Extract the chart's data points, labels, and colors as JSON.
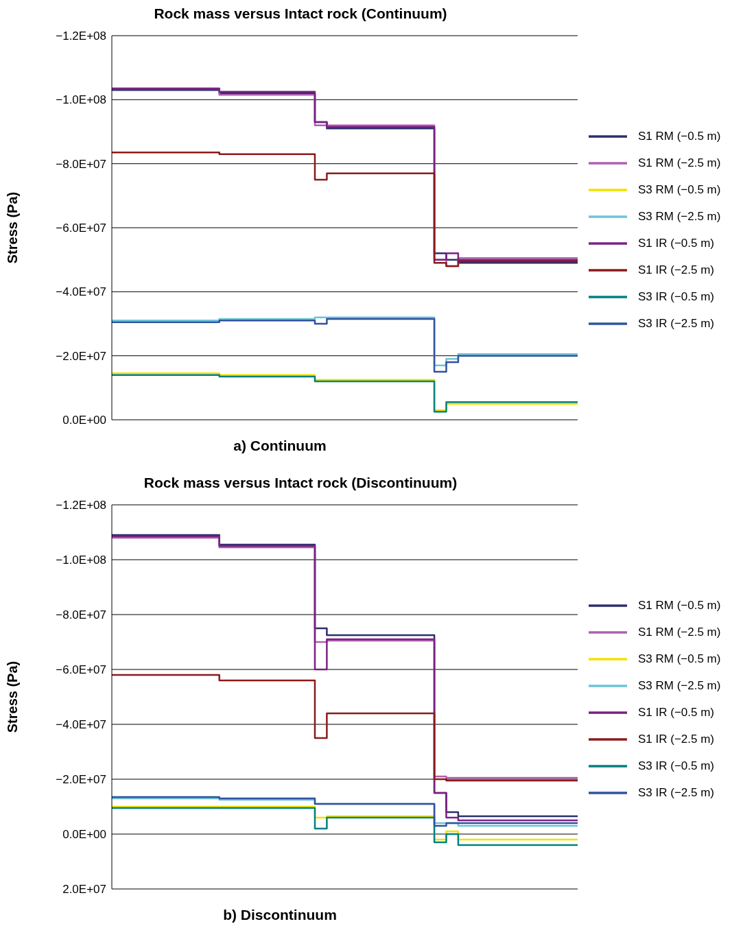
{
  "chart_data": [
    {
      "type": "step",
      "title": "Rock mass versus Intact rock (Continuum)",
      "xlabel": "a) Continuum",
      "ylabel": "Stress (Pa)",
      "categories": [
        null,
        null,
        null,
        null,
        null,
        null,
        null,
        null,
        null,
        null,
        null,
        null,
        null,
        null,
        null,
        null,
        null,
        null,
        null,
        null,
        null,
        null,
        null,
        null,
        null,
        null,
        null,
        null,
        null,
        null,
        null,
        null,
        null,
        null,
        null,
        null,
        null,
        null,
        null,
        null
      ],
      "ylim": [
        0,
        -120000000.0
      ],
      "yticks": [
        {
          "value": 0,
          "label": "0.0E+00"
        },
        {
          "value": -20000000.0,
          "label": "−2.0E+07"
        },
        {
          "value": -40000000.0,
          "label": "−4.0E+07"
        },
        {
          "value": -60000000.0,
          "label": "−6.0E+07"
        },
        {
          "value": -80000000.0,
          "label": "−8.0E+07"
        },
        {
          "value": -100000000.0,
          "label": "−1.0E+08"
        },
        {
          "value": -120000000.0,
          "label": "−1.2E+08"
        }
      ],
      "grid": "y",
      "legend": "right",
      "tick_labels": "y",
      "marker": "none",
      "series": [
        {
          "name": "S1 RM (−0.5 m)",
          "color": "#2b2f6b",
          "values": [
            -103000000.0,
            -103000000.0,
            -103000000.0,
            -103000000.0,
            -103000000.0,
            -103000000.0,
            -103000000.0,
            -103000000.0,
            -103000000.0,
            -102000000.0,
            -102000000.0,
            -102000000.0,
            -102000000.0,
            -102000000.0,
            -102000000.0,
            -102000000.0,
            -102000000.0,
            -93000000.0,
            -91000000.0,
            -91000000.0,
            -91000000.0,
            -91000000.0,
            -91000000.0,
            -91000000.0,
            -91000000.0,
            -91000000.0,
            -91000000.0,
            -52000000.0,
            -50000000.0,
            -49000000.0,
            -49000000.0,
            -49000000.0,
            -49000000.0,
            -49000000.0,
            -49000000.0,
            -49000000.0,
            -49000000.0,
            -49000000.0,
            -49000000.0,
            -49000000.0
          ]
        },
        {
          "name": "S1 RM (−2.5 m)",
          "color": "#b060b0",
          "values": [
            -103500000.0,
            -103500000.0,
            -103500000.0,
            -103500000.0,
            -103500000.0,
            -103500000.0,
            -103500000.0,
            -103500000.0,
            -103500000.0,
            -101500000.0,
            -101500000.0,
            -101500000.0,
            -101500000.0,
            -101500000.0,
            -101500000.0,
            -101500000.0,
            -101500000.0,
            -92000000.0,
            -92000000.0,
            -92000000.0,
            -92000000.0,
            -92000000.0,
            -92000000.0,
            -92000000.0,
            -92000000.0,
            -92000000.0,
            -92000000.0,
            -50000000.0,
            -48000000.0,
            -50500000.0,
            -50500000.0,
            -50500000.0,
            -50500000.0,
            -50500000.0,
            -50500000.0,
            -50500000.0,
            -50500000.0,
            -50500000.0,
            -50500000.0,
            -50500000.0
          ]
        },
        {
          "name": "S3 RM (−0.5 m)",
          "color": "#f2e200",
          "values": [
            -14500000.0,
            -14500000.0,
            -14500000.0,
            -14500000.0,
            -14500000.0,
            -14500000.0,
            -14500000.0,
            -14500000.0,
            -14500000.0,
            -14000000.0,
            -14000000.0,
            -14000000.0,
            -14000000.0,
            -14000000.0,
            -14000000.0,
            -14000000.0,
            -14000000.0,
            -12500000.0,
            -12500000.0,
            -12500000.0,
            -12500000.0,
            -12500000.0,
            -12500000.0,
            -12500000.0,
            -12500000.0,
            -12500000.0,
            -12500000.0,
            -3000000.0,
            -5000000.0,
            -5000000.0,
            -5000000.0,
            -5000000.0,
            -5000000.0,
            -5000000.0,
            -5000000.0,
            -5000000.0,
            -5000000.0,
            -5000000.0,
            -5000000.0,
            -5000000.0
          ]
        },
        {
          "name": "S3 RM (−2.5 m)",
          "color": "#6cc4d8",
          "values": [
            -31000000.0,
            -31000000.0,
            -31000000.0,
            -31000000.0,
            -31000000.0,
            -31000000.0,
            -31000000.0,
            -31000000.0,
            -31000000.0,
            -31500000.0,
            -31500000.0,
            -31500000.0,
            -31500000.0,
            -31500000.0,
            -31500000.0,
            -31500000.0,
            -31500000.0,
            -32000000.0,
            -32000000.0,
            -32000000.0,
            -32000000.0,
            -32000000.0,
            -32000000.0,
            -32000000.0,
            -32000000.0,
            -32000000.0,
            -32000000.0,
            -17000000.0,
            -19000000.0,
            -20500000.0,
            -20500000.0,
            -20500000.0,
            -20500000.0,
            -20500000.0,
            -20500000.0,
            -20500000.0,
            -20500000.0,
            -20500000.0,
            -20500000.0,
            -20500000.0
          ]
        },
        {
          "name": "S1 IR (−0.5 m)",
          "color": "#7b2182",
          "values": [
            -103500000.0,
            -103500000.0,
            -103500000.0,
            -103500000.0,
            -103500000.0,
            -103500000.0,
            -103500000.0,
            -103500000.0,
            -103500000.0,
            -102500000.0,
            -102500000.0,
            -102500000.0,
            -102500000.0,
            -102500000.0,
            -102500000.0,
            -102500000.0,
            -102500000.0,
            -93000000.0,
            -91500000.0,
            -91500000.0,
            -91500000.0,
            -91500000.0,
            -91500000.0,
            -91500000.0,
            -91500000.0,
            -91500000.0,
            -91500000.0,
            -50000000.0,
            -52000000.0,
            -50000000.0,
            -50000000.0,
            -50000000.0,
            -50000000.0,
            -50000000.0,
            -50000000.0,
            -50000000.0,
            -50000000.0,
            -50000000.0,
            -50000000.0,
            -50000000.0
          ]
        },
        {
          "name": "S1 IR (−2.5 m)",
          "color": "#8b1a1a",
          "values": [
            -83500000.0,
            -83500000.0,
            -83500000.0,
            -83500000.0,
            -83500000.0,
            -83500000.0,
            -83500000.0,
            -83500000.0,
            -83500000.0,
            -83000000.0,
            -83000000.0,
            -83000000.0,
            -83000000.0,
            -83000000.0,
            -83000000.0,
            -83000000.0,
            -83000000.0,
            -75000000.0,
            -77000000.0,
            -77000000.0,
            -77000000.0,
            -77000000.0,
            -77000000.0,
            -77000000.0,
            -77000000.0,
            -77000000.0,
            -77000000.0,
            -49000000.0,
            -48000000.0,
            -49500000.0,
            -49500000.0,
            -49500000.0,
            -49500000.0,
            -49500000.0,
            -49500000.0,
            -49500000.0,
            -49500000.0,
            -49500000.0,
            -49500000.0,
            -49500000.0
          ]
        },
        {
          "name": "S3 IR (−0.5 m)",
          "color": "#00827f",
          "values": [
            -14000000.0,
            -14000000.0,
            -14000000.0,
            -14000000.0,
            -14000000.0,
            -14000000.0,
            -14000000.0,
            -14000000.0,
            -14000000.0,
            -13500000.0,
            -13500000.0,
            -13500000.0,
            -13500000.0,
            -13500000.0,
            -13500000.0,
            -13500000.0,
            -13500000.0,
            -12000000.0,
            -12000000.0,
            -12000000.0,
            -12000000.0,
            -12000000.0,
            -12000000.0,
            -12000000.0,
            -12000000.0,
            -12000000.0,
            -12000000.0,
            -2500000.0,
            -5500000.0,
            -5500000.0,
            -5500000.0,
            -5500000.0,
            -5500000.0,
            -5500000.0,
            -5500000.0,
            -5500000.0,
            -5500000.0,
            -5500000.0,
            -5500000.0,
            -5500000.0
          ]
        },
        {
          "name": "S3 IR (−2.5 m)",
          "color": "#2f52a0",
          "values": [
            -30500000.0,
            -30500000.0,
            -30500000.0,
            -30500000.0,
            -30500000.0,
            -30500000.0,
            -30500000.0,
            -30500000.0,
            -30500000.0,
            -31000000.0,
            -31000000.0,
            -31000000.0,
            -31000000.0,
            -31000000.0,
            -31000000.0,
            -31000000.0,
            -31000000.0,
            -30000000.0,
            -31500000.0,
            -31500000.0,
            -31500000.0,
            -31500000.0,
            -31500000.0,
            -31500000.0,
            -31500000.0,
            -31500000.0,
            -31500000.0,
            -15000000.0,
            -18000000.0,
            -20000000.0,
            -20000000.0,
            -20000000.0,
            -20000000.0,
            -20000000.0,
            -20000000.0,
            -20000000.0,
            -20000000.0,
            -20000000.0,
            -20000000.0,
            -20000000.0
          ]
        }
      ]
    },
    {
      "type": "step",
      "title": "Rock mass versus Intact rock (Discontinuum)",
      "xlabel": "b) Discontinuum",
      "ylabel": "Stress (Pa)",
      "categories": [
        null,
        null,
        null,
        null,
        null,
        null,
        null,
        null,
        null,
        null,
        null,
        null,
        null,
        null,
        null,
        null,
        null,
        null,
        null,
        null,
        null,
        null,
        null,
        null,
        null,
        null,
        null,
        null,
        null,
        null,
        null,
        null,
        null,
        null,
        null,
        null,
        null,
        null,
        null,
        null
      ],
      "ylim": [
        20000000.0,
        -120000000.0
      ],
      "yticks": [
        {
          "value": 20000000.0,
          "label": "2.0E+07"
        },
        {
          "value": 0,
          "label": "0.0E+00"
        },
        {
          "value": -20000000.0,
          "label": "−2.0E+07"
        },
        {
          "value": -40000000.0,
          "label": "−4.0E+07"
        },
        {
          "value": -60000000.0,
          "label": "−6.0E+07"
        },
        {
          "value": -80000000.0,
          "label": "−8.0E+07"
        },
        {
          "value": -100000000.0,
          "label": "−1.0E+08"
        },
        {
          "value": -120000000.0,
          "label": "−1.2E+08"
        }
      ],
      "grid": "y",
      "legend": "right",
      "tick_labels": "y",
      "marker": "none",
      "series": [
        {
          "name": "S1 RM (−0.5 m)",
          "color": "#2b2f6b",
          "values": [
            -109000000.0,
            -109000000.0,
            -109000000.0,
            -109000000.0,
            -109000000.0,
            -109000000.0,
            -109000000.0,
            -109000000.0,
            -109000000.0,
            -105500000.0,
            -105500000.0,
            -105500000.0,
            -105500000.0,
            -105500000.0,
            -105500000.0,
            -105500000.0,
            -105500000.0,
            -75000000.0,
            -72500000.0,
            -72500000.0,
            -72500000.0,
            -72500000.0,
            -72500000.0,
            -72500000.0,
            -72500000.0,
            -72500000.0,
            -72500000.0,
            -15000000.0,
            -8000000.0,
            -6500000.0,
            -6500000.0,
            -6500000.0,
            -6500000.0,
            -6500000.0,
            -6500000.0,
            -6500000.0,
            -6500000.0,
            -6500000.0,
            -6500000.0,
            -6500000.0
          ]
        },
        {
          "name": "S1 RM (−2.5 m)",
          "color": "#b060b0",
          "values": [
            -108000000.0,
            -108000000.0,
            -108000000.0,
            -108000000.0,
            -108000000.0,
            -108000000.0,
            -108000000.0,
            -108000000.0,
            -108000000.0,
            -104500000.0,
            -104500000.0,
            -104500000.0,
            -104500000.0,
            -104500000.0,
            -104500000.0,
            -104500000.0,
            -104500000.0,
            -70000000.0,
            -70500000.0,
            -70500000.0,
            -70500000.0,
            -70500000.0,
            -70500000.0,
            -70500000.0,
            -70500000.0,
            -70500000.0,
            -70500000.0,
            -21000000.0,
            -20500000.0,
            -20500000.0,
            -20500000.0,
            -20500000.0,
            -20500000.0,
            -20500000.0,
            -20500000.0,
            -20500000.0,
            -20500000.0,
            -20500000.0,
            -20500000.0,
            -20500000.0
          ]
        },
        {
          "name": "S3 RM (−0.5 m)",
          "color": "#f2e200",
          "values": [
            -10000000.0,
            -10000000.0,
            -10000000.0,
            -10000000.0,
            -10000000.0,
            -10000000.0,
            -10000000.0,
            -10000000.0,
            -10000000.0,
            -10000000.0,
            -10000000.0,
            -10000000.0,
            -10000000.0,
            -10000000.0,
            -10000000.0,
            -10000000.0,
            -10000000.0,
            -6000000.0,
            -6500000.0,
            -6500000.0,
            -6500000.0,
            -6500000.0,
            -6500000.0,
            -6500000.0,
            -6500000.0,
            -6500000.0,
            -6500000.0,
            2000000.0,
            -1000000.0,
            2000000.0,
            2000000.0,
            2000000.0,
            2000000.0,
            2000000.0,
            2000000.0,
            2000000.0,
            2000000.0,
            2000000.0,
            2000000.0,
            2000000.0
          ]
        },
        {
          "name": "S3 RM (−2.5 m)",
          "color": "#6cc4d8",
          "values": [
            -13000000.0,
            -13000000.0,
            -13000000.0,
            -13000000.0,
            -13000000.0,
            -13000000.0,
            -13000000.0,
            -13000000.0,
            -13000000.0,
            -12500000.0,
            -12500000.0,
            -12500000.0,
            -12500000.0,
            -12500000.0,
            -12500000.0,
            -12500000.0,
            -12500000.0,
            -11000000.0,
            -11000000.0,
            -11000000.0,
            -11000000.0,
            -11000000.0,
            -11000000.0,
            -11000000.0,
            -11000000.0,
            -11000000.0,
            -11000000.0,
            -4000000.0,
            -4000000.0,
            -3000000.0,
            -3000000.0,
            -3000000.0,
            -3000000.0,
            -3000000.0,
            -3000000.0,
            -3000000.0,
            -3000000.0,
            -3000000.0,
            -3000000.0,
            -3000000.0
          ]
        },
        {
          "name": "S1 IR (−0.5 m)",
          "color": "#7b2182",
          "values": [
            -108500000.0,
            -108500000.0,
            -108500000.0,
            -108500000.0,
            -108500000.0,
            -108500000.0,
            -108500000.0,
            -108500000.0,
            -108500000.0,
            -105000000.0,
            -105000000.0,
            -105000000.0,
            -105000000.0,
            -105000000.0,
            -105000000.0,
            -105000000.0,
            -105000000.0,
            -60000000.0,
            -71000000.0,
            -71000000.0,
            -71000000.0,
            -71000000.0,
            -71000000.0,
            -71000000.0,
            -71000000.0,
            -71000000.0,
            -71000000.0,
            -15000000.0,
            -6000000.0,
            -5000000.0,
            -5000000.0,
            -5000000.0,
            -5000000.0,
            -5000000.0,
            -5000000.0,
            -5000000.0,
            -5000000.0,
            -5000000.0,
            -5000000.0,
            -5000000.0
          ]
        },
        {
          "name": "S1 IR (−2.5 m)",
          "color": "#8b1a1a",
          "values": [
            -58000000.0,
            -58000000.0,
            -58000000.0,
            -58000000.0,
            -58000000.0,
            -58000000.0,
            -58000000.0,
            -58000000.0,
            -58000000.0,
            -56000000.0,
            -56000000.0,
            -56000000.0,
            -56000000.0,
            -56000000.0,
            -56000000.0,
            -56000000.0,
            -56000000.0,
            -35000000.0,
            -44000000.0,
            -44000000.0,
            -44000000.0,
            -44000000.0,
            -44000000.0,
            -44000000.0,
            -44000000.0,
            -44000000.0,
            -44000000.0,
            -20000000.0,
            -19500000.0,
            -19500000.0,
            -19500000.0,
            -19500000.0,
            -19500000.0,
            -19500000.0,
            -19500000.0,
            -19500000.0,
            -19500000.0,
            -19500000.0,
            -19500000.0,
            -19500000.0
          ]
        },
        {
          "name": "S3 IR (−0.5 m)",
          "color": "#00827f",
          "values": [
            -9500000.0,
            -9500000.0,
            -9500000.0,
            -9500000.0,
            -9500000.0,
            -9500000.0,
            -9500000.0,
            -9500000.0,
            -9500000.0,
            -9500000.0,
            -9500000.0,
            -9500000.0,
            -9500000.0,
            -9500000.0,
            -9500000.0,
            -9500000.0,
            -9500000.0,
            -2000000.0,
            -6000000.0,
            -6000000.0,
            -6000000.0,
            -6000000.0,
            -6000000.0,
            -6000000.0,
            -6000000.0,
            -6000000.0,
            -6000000.0,
            3000000.0,
            0,
            4000000.0,
            4000000.0,
            4000000.0,
            4000000.0,
            4000000.0,
            4000000.0,
            4000000.0,
            4000000.0,
            4000000.0,
            4000000.0,
            4000000.0
          ]
        },
        {
          "name": "S3 IR (−2.5 m)",
          "color": "#2f52a0",
          "values": [
            -13500000.0,
            -13500000.0,
            -13500000.0,
            -13500000.0,
            -13500000.0,
            -13500000.0,
            -13500000.0,
            -13500000.0,
            -13500000.0,
            -13000000.0,
            -13000000.0,
            -13000000.0,
            -13000000.0,
            -13000000.0,
            -13000000.0,
            -13000000.0,
            -13000000.0,
            -11000000.0,
            -11000000.0,
            -11000000.0,
            -11000000.0,
            -11000000.0,
            -11000000.0,
            -11000000.0,
            -11000000.0,
            -11000000.0,
            -11000000.0,
            -3000000.0,
            -4000000.0,
            -4000000.0,
            -4000000.0,
            -4000000.0,
            -4000000.0,
            -4000000.0,
            -4000000.0,
            -4000000.0,
            -4000000.0,
            -4000000.0,
            -4000000.0,
            -4000000.0
          ]
        }
      ]
    }
  ]
}
